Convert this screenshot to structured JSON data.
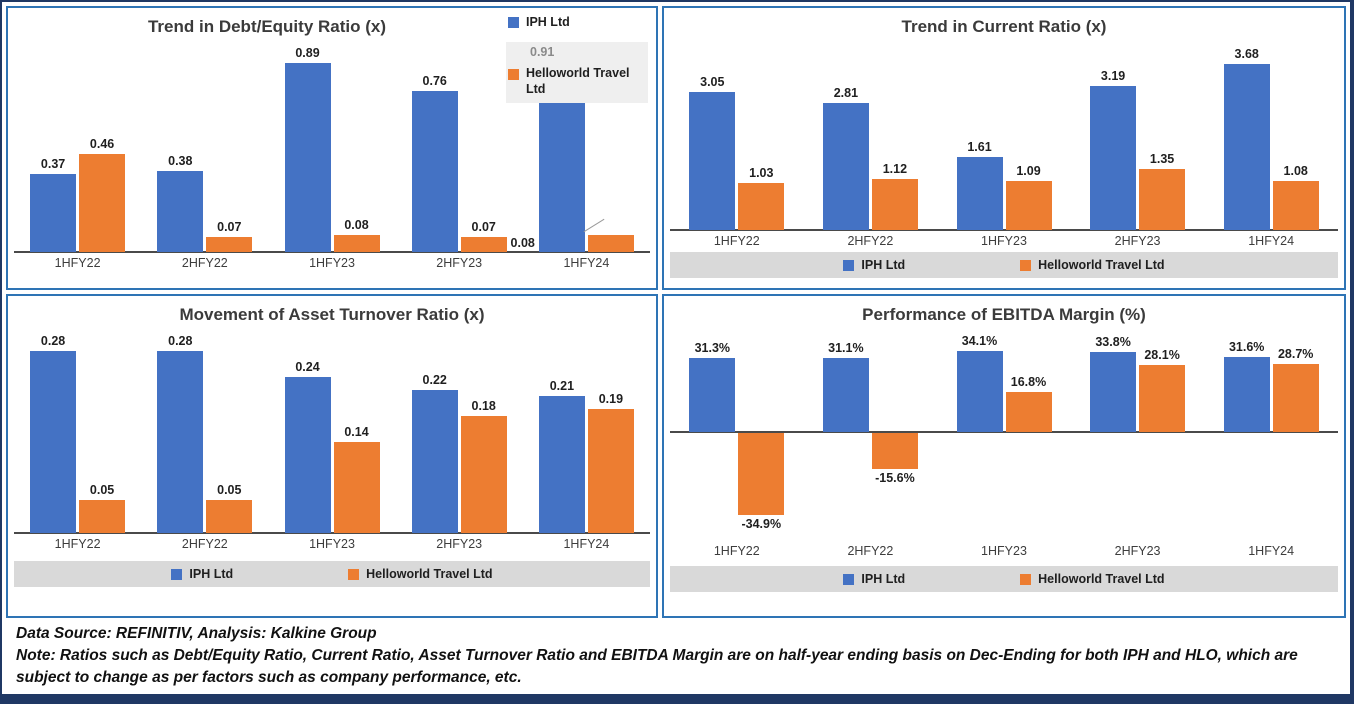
{
  "footer": {
    "source": "Data Source: REFINITIV, Analysis: Kalkine Group",
    "note": "Note: Ratios such as Debt/Equity Ratio, Current Ratio, Asset Turnover Ratio and EBITDA Margin are on half-year ending basis on Dec-Ending for both IPH and HLO, which are subject to change as per factors such as company performance, etc."
  },
  "colors": {
    "iph_blue": "#4472C4",
    "hlo_orange": "#ED7D31",
    "panel_border": "#2E74B5",
    "outer_border": "#1F3864",
    "legend_bg": "#D9D9D9"
  },
  "chart_data": [
    {
      "type": "bar",
      "title": "Trend in Debt/Equity Ratio (x)",
      "categories": [
        "1HFY22",
        "2HFY22",
        "1HFY23",
        "2HFY23",
        "1HFY24"
      ],
      "ylim": [
        0,
        1.0
      ],
      "grid": false,
      "legend_position": "overlay-top-right",
      "legend_note": "0.91",
      "series": [
        {
          "name": "IPH Ltd",
          "color": "#4472C4",
          "values": [
            0.37,
            0.38,
            0.89,
            0.76,
            0.91
          ],
          "labels": [
            "0.37",
            "0.38",
            "0.89",
            "0.76",
            "0.91"
          ]
        },
        {
          "name": "Helloworld Travel Ltd",
          "color": "#ED7D31",
          "values": [
            0.46,
            0.07,
            0.08,
            0.07,
            0.08
          ],
          "labels": [
            "0.46",
            "0.07",
            "0.08",
            "0.07",
            "0.08"
          ]
        }
      ],
      "label_overrides": [
        {
          "series": 0,
          "index": 4,
          "mode": "hidden"
        },
        {
          "series": 1,
          "index": 4,
          "mode": "axis-left"
        }
      ]
    },
    {
      "type": "bar",
      "title": "Trend in Current Ratio (x)",
      "categories": [
        "1HFY22",
        "2HFY22",
        "1HFY23",
        "2HFY23",
        "1HFY24"
      ],
      "ylim": [
        0,
        4.2
      ],
      "grid": false,
      "legend_position": "bottom",
      "series": [
        {
          "name": "IPH Ltd",
          "color": "#4472C4",
          "values": [
            3.05,
            2.81,
            1.61,
            3.19,
            3.68
          ],
          "labels": [
            "3.05",
            "2.81",
            "1.61",
            "3.19",
            "3.68"
          ]
        },
        {
          "name": "Helloworld Travel Ltd",
          "color": "#ED7D31",
          "values": [
            1.03,
            1.12,
            1.09,
            1.35,
            1.08
          ],
          "labels": [
            "1.03",
            "1.12",
            "1.09",
            "1.35",
            "1.08"
          ]
        }
      ]
    },
    {
      "type": "bar",
      "title": "Movement of Asset Turnover Ratio (x)",
      "categories": [
        "1HFY22",
        "2HFY22",
        "1HFY23",
        "2HFY23",
        "1HFY24"
      ],
      "ylim": [
        0,
        0.315
      ],
      "grid": false,
      "legend_position": "bottom",
      "series": [
        {
          "name": "IPH Ltd",
          "color": "#4472C4",
          "values": [
            0.28,
            0.28,
            0.24,
            0.22,
            0.21
          ],
          "labels": [
            "0.28",
            "0.28",
            "0.24",
            "0.22",
            "0.21"
          ]
        },
        {
          "name": "Helloworld Travel Ltd",
          "color": "#ED7D31",
          "values": [
            0.05,
            0.05,
            0.14,
            0.18,
            0.19
          ],
          "labels": [
            "0.05",
            "0.05",
            "0.14",
            "0.18",
            "0.19"
          ]
        }
      ]
    },
    {
      "type": "bar",
      "title": "Performance of EBITDA Margin (%)",
      "categories": [
        "1HFY22",
        "2HFY22",
        "1HFY23",
        "2HFY23",
        "1HFY24"
      ],
      "ylim": [
        -46,
        44
      ],
      "grid": false,
      "legend_position": "bottom",
      "series": [
        {
          "name": "IPH Ltd",
          "color": "#4472C4",
          "values": [
            31.3,
            31.1,
            34.1,
            33.8,
            31.6
          ],
          "labels": [
            "31.3%",
            "31.1%",
            "34.1%",
            "33.8%",
            "31.6%"
          ]
        },
        {
          "name": "Helloworld Travel Ltd",
          "color": "#ED7D31",
          "values": [
            -34.9,
            -15.6,
            16.8,
            28.1,
            28.7
          ],
          "labels": [
            "-34.9%",
            "-15.6%",
            "16.8%",
            "28.1%",
            "28.7%"
          ]
        }
      ]
    }
  ]
}
